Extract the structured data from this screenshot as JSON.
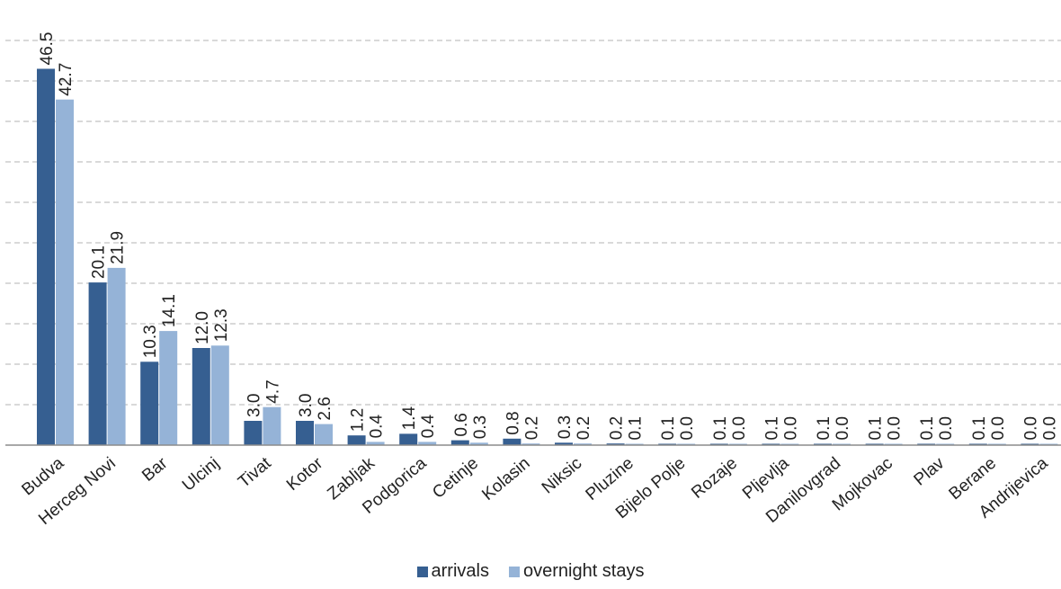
{
  "chart_data": {
    "type": "bar",
    "categories": [
      "Budva",
      "Herceg Novi",
      "Bar",
      "Ulcinj",
      "Tivat",
      "Kotor",
      "Zabljak",
      "Podgorica",
      "Cetinje",
      "Kolasin",
      "Niksic",
      "Pluzine",
      "Bijelo Polje",
      "Rozaje",
      "Pljevlja",
      "Danilovgrad",
      "Mojkovac",
      "Plav",
      "Berane",
      "Andrijevica"
    ],
    "series": [
      {
        "name": "arrivals",
        "color": "#365F91",
        "values": [
          46.5,
          20.1,
          10.3,
          12.0,
          3.0,
          3.0,
          1.2,
          1.4,
          0.6,
          0.8,
          0.3,
          0.2,
          0.1,
          0.1,
          0.1,
          0.1,
          0.1,
          0.1,
          0.1,
          0.0
        ],
        "labels": [
          "46.5",
          "20.1",
          "10.3",
          "12.0",
          "3.0",
          "3.0",
          "1.2",
          "1.4",
          "0.6",
          "0.8",
          "0.3",
          "0.2",
          "0.1",
          "0.1",
          "0.1",
          "0.1",
          "0.1",
          "0.1",
          "0.1",
          "0.0"
        ]
      },
      {
        "name": "overnight stays",
        "color": "#95B3D7",
        "values": [
          42.7,
          21.9,
          14.1,
          12.3,
          4.7,
          2.6,
          0.4,
          0.4,
          0.3,
          0.2,
          0.2,
          0.1,
          0.0,
          0.0,
          0.0,
          0.0,
          0.0,
          0.0,
          0.0,
          0.0
        ],
        "labels": [
          "42.7",
          "21.9",
          "14.1",
          "12.3",
          "4.7",
          "2.6",
          "0.4",
          "0.4",
          "0.3",
          "0.2",
          "0.2",
          "0.1",
          "0.0",
          "0.0",
          "0.0",
          "0.0",
          "0.0",
          "0.0",
          "0.0",
          "0.0"
        ]
      }
    ],
    "ylim": [
      0,
      50
    ],
    "y_grid_step": 5,
    "grid": true,
    "grid_style": "dashed",
    "legend_position": "bottom",
    "data_labels": "rotated",
    "y_axis_labels_shown": false
  }
}
